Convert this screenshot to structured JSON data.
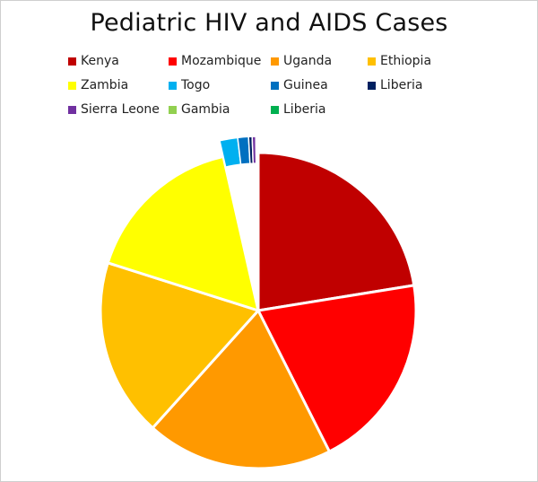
{
  "chart_data": {
    "type": "pie",
    "title": "Pediatric HIV and AIDS Cases",
    "categories": [
      "Kenya",
      "Mozambique",
      "Uganda",
      "Ethiopia",
      "Zambia",
      "Togo",
      "Guinea",
      "Liberia",
      "Sierra Leone",
      "Gambia",
      "Liberia"
    ],
    "values": [
      20.2,
      18.1,
      17.2,
      16.4,
      14.9,
      1.5,
      0.9,
      0.3,
      0.3,
      0.1,
      0.1
    ],
    "colors": [
      "#c00000",
      "#ff0000",
      "#ff9900",
      "#ffc000",
      "#ffff00",
      "#00b0f0",
      "#0070c0",
      "#002060",
      "#7030a0",
      "#92d050",
      "#00b050"
    ],
    "exploded_slices": [
      "Togo",
      "Guinea",
      "Liberia",
      "Sierra Leone",
      "Gambia",
      "Liberia"
    ],
    "legend_position": "top",
    "slice_border_color": "#ffffff"
  }
}
